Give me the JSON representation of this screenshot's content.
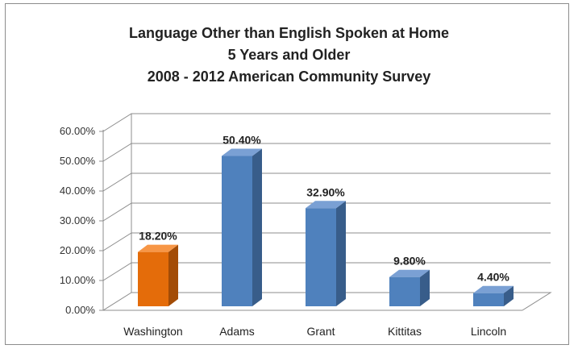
{
  "chart_data": {
    "type": "bar",
    "title_lines": [
      "Language Other than English Spoken at Home",
      "5 Years and Older",
      "2008 - 2012 American Community Survey"
    ],
    "categories": [
      "Washington",
      "Adams",
      "Grant",
      "Kittitas",
      "Lincoln"
    ],
    "values": [
      18.2,
      50.4,
      32.9,
      9.8,
      4.4
    ],
    "value_labels": [
      "18.20%",
      "50.40%",
      "32.90%",
      "9.80%",
      "4.40%"
    ],
    "y_ticks": [
      "0.00%",
      "10.00%",
      "20.00%",
      "30.00%",
      "40.00%",
      "50.00%",
      "60.00%"
    ],
    "ylim": [
      0,
      60
    ],
    "grid": true,
    "legend": "none",
    "highlight_category": "Washington",
    "colors": {
      "default_bar": "#4f81bd",
      "default_bar_side": "#385d8a",
      "default_bar_top": "#7aa0d4",
      "highlight_bar": "#e46c0a",
      "highlight_bar_side": "#a34c06",
      "highlight_bar_top": "#f79646",
      "grid": "#8c8c8c"
    }
  }
}
